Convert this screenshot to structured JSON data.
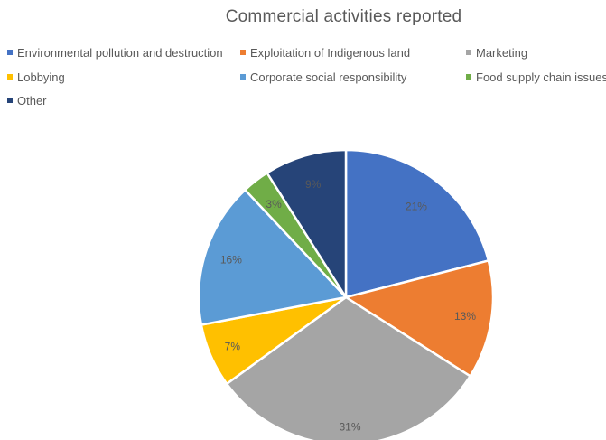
{
  "chart_data": {
    "type": "pie",
    "title": "Commercial activities reported",
    "legend_position": "top",
    "slices": [
      {
        "name": "Environmental pollution and destruction",
        "value": 21,
        "label": "21%",
        "color": "#4472C4"
      },
      {
        "name": "Exploitation of Indigenous land",
        "value": 13,
        "label": "13%",
        "color": "#ED7D31"
      },
      {
        "name": "Marketing",
        "value": 31,
        "label": "31%",
        "color": "#A5A5A5"
      },
      {
        "name": "Lobbying",
        "value": 7,
        "label": "7%",
        "color": "#FFC000"
      },
      {
        "name": "Corporate social responsibility",
        "value": 16,
        "label": "16%",
        "color": "#5B9BD5"
      },
      {
        "name": "Food supply chain issues",
        "value": 3,
        "label": "3%",
        "color": "#70AD47"
      },
      {
        "name": "Other",
        "value": 9,
        "label": "9%",
        "color": "#264478"
      }
    ]
  }
}
